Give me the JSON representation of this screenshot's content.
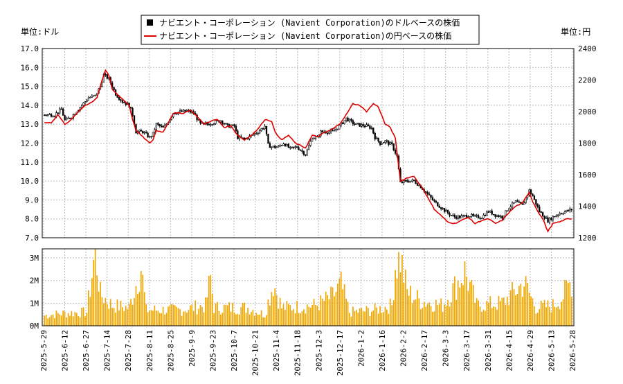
{
  "chart_data": {
    "type": "candlestick-volume",
    "legend": {
      "placement": "top-center",
      "entries": [
        {
          "label": "ナビエント・コーポレーション (Navient Corporation)のドルベースの株価",
          "color": "#000000",
          "marker": "square"
        },
        {
          "label": "ナビエント・コーポレーション (Navient Corporation)の円ベースの株価",
          "color": "#dd0000",
          "marker": "line"
        }
      ]
    },
    "left_unit_label": "単位:ドル",
    "right_unit_label": "単位:円",
    "price_axis_left": {
      "ylim": [
        7.0,
        17.0
      ],
      "ticks": [
        "7.0",
        "8.0",
        "9.0",
        "10.0",
        "11.0",
        "12.0",
        "13.0",
        "14.0",
        "15.0",
        "16.0",
        "17.0"
      ]
    },
    "price_axis_right": {
      "ylim": [
        1200,
        2400
      ],
      "ticks": [
        "1200",
        "1400",
        "1600",
        "1800",
        "2000",
        "2200",
        "2400"
      ]
    },
    "volume_axis": {
      "ylim": [
        0,
        3.4
      ],
      "ticks": [
        "0M",
        "1M",
        "2M",
        "3M"
      ]
    },
    "x_ticks": [
      "2025-5-29",
      "2025-6-12",
      "2025-6-27",
      "2025-7-14",
      "2025-7-28",
      "2025-8-11",
      "2025-8-25",
      "2025-9-9",
      "2025-9-23",
      "2025-10-7",
      "2025-10-21",
      "2025-11-4",
      "2025-11-18",
      "2025-12-3",
      "2025-12-17",
      "2026-1-2",
      "2026-1-16",
      "2026-2-2",
      "2026-2-17",
      "2026-3-3",
      "2026-3-17",
      "2026-3-31",
      "2026-4-15",
      "2026-4-29",
      "2026-5-13",
      "2026-5-28"
    ],
    "grid": true,
    "colors": {
      "usd": "#000000",
      "jpy": "#dd0000",
      "volume": "#f0a800",
      "grid": "#bbbbbb"
    },
    "keyframes_usd": [
      [
        0,
        13.5
      ],
      [
        6,
        13.5
      ],
      [
        10,
        13.8
      ],
      [
        12,
        13.2
      ],
      [
        16,
        13.4
      ],
      [
        22,
        14.0
      ],
      [
        26,
        14.4
      ],
      [
        30,
        14.5
      ],
      [
        33,
        15.0
      ],
      [
        35,
        15.6
      ],
      [
        38,
        15.4
      ],
      [
        40,
        15.0
      ],
      [
        42,
        14.6
      ],
      [
        46,
        14.2
      ],
      [
        50,
        14.0
      ],
      [
        52,
        13.5
      ],
      [
        54,
        12.6
      ],
      [
        58,
        12.6
      ],
      [
        62,
        12.3
      ],
      [
        64,
        12.5
      ],
      [
        66,
        13.0
      ],
      [
        70,
        12.8
      ],
      [
        72,
        13.0
      ],
      [
        76,
        13.6
      ],
      [
        84,
        13.7
      ],
      [
        88,
        13.6
      ],
      [
        92,
        13.0
      ],
      [
        96,
        13.0
      ],
      [
        100,
        13.1
      ],
      [
        104,
        13.2
      ],
      [
        108,
        12.9
      ],
      [
        112,
        12.9
      ],
      [
        114,
        12.3
      ],
      [
        118,
        12.2
      ],
      [
        122,
        12.4
      ],
      [
        126,
        12.6
      ],
      [
        130,
        12.9
      ],
      [
        132,
        11.9
      ],
      [
        134,
        11.8
      ],
      [
        138,
        11.8
      ],
      [
        141,
        12.0
      ],
      [
        145,
        11.7
      ],
      [
        149,
        11.8
      ],
      [
        154,
        11.4
      ],
      [
        158,
        12.3
      ],
      [
        161,
        12.3
      ],
      [
        163,
        12.6
      ],
      [
        170,
        12.6
      ],
      [
        174,
        12.9
      ],
      [
        178,
        13.3
      ],
      [
        183,
        13.0
      ],
      [
        190,
        12.9
      ],
      [
        193,
        12.8
      ],
      [
        195,
        12.3
      ],
      [
        198,
        12.0
      ],
      [
        201,
        12.1
      ],
      [
        205,
        11.9
      ],
      [
        208,
        11.3
      ],
      [
        210,
        9.9
      ],
      [
        214,
        10.0
      ],
      [
        218,
        10.0
      ],
      [
        222,
        9.7
      ],
      [
        226,
        9.3
      ],
      [
        230,
        8.9
      ],
      [
        234,
        8.6
      ],
      [
        238,
        8.3
      ],
      [
        242,
        8.1
      ],
      [
        246,
        8.1
      ],
      [
        250,
        8.2
      ],
      [
        254,
        8.1
      ],
      [
        258,
        8.1
      ],
      [
        262,
        8.4
      ],
      [
        266,
        8.2
      ],
      [
        270,
        8.1
      ],
      [
        274,
        8.6
      ],
      [
        278,
        8.9
      ],
      [
        282,
        8.7
      ],
      [
        286,
        9.5
      ],
      [
        288,
        9.2
      ],
      [
        292,
        8.4
      ],
      [
        294,
        8.2
      ],
      [
        297,
        7.9
      ],
      [
        300,
        8.1
      ],
      [
        304,
        8.3
      ],
      [
        308,
        8.4
      ],
      [
        311,
        8.5
      ]
    ],
    "keyframes_jpy": [
      [
        0,
        1930
      ],
      [
        4,
        1930
      ],
      [
        8,
        1980
      ],
      [
        12,
        1920
      ],
      [
        16,
        1950
      ],
      [
        20,
        2000
      ],
      [
        24,
        2040
      ],
      [
        28,
        2060
      ],
      [
        31,
        2090
      ],
      [
        34,
        2200
      ],
      [
        36,
        2260
      ],
      [
        38,
        2230
      ],
      [
        40,
        2140
      ],
      [
        42,
        2120
      ],
      [
        46,
        2080
      ],
      [
        50,
        2040
      ],
      [
        52,
        1950
      ],
      [
        54,
        1880
      ],
      [
        58,
        1840
      ],
      [
        62,
        1800
      ],
      [
        64,
        1820
      ],
      [
        66,
        1880
      ],
      [
        70,
        1870
      ],
      [
        72,
        1910
      ],
      [
        76,
        1990
      ],
      [
        82,
        1990
      ],
      [
        86,
        2010
      ],
      [
        90,
        1970
      ],
      [
        94,
        1920
      ],
      [
        98,
        1940
      ],
      [
        102,
        1950
      ],
      [
        106,
        1900
      ],
      [
        110,
        1910
      ],
      [
        114,
        1850
      ],
      [
        118,
        1820
      ],
      [
        122,
        1850
      ],
      [
        126,
        1890
      ],
      [
        130,
        1950
      ],
      [
        134,
        1940
      ],
      [
        136,
        1870
      ],
      [
        140,
        1820
      ],
      [
        144,
        1850
      ],
      [
        148,
        1800
      ],
      [
        154,
        1770
      ],
      [
        158,
        1850
      ],
      [
        161,
        1840
      ],
      [
        164,
        1860
      ],
      [
        170,
        1890
      ],
      [
        174,
        1920
      ],
      [
        178,
        1980
      ],
      [
        182,
        2050
      ],
      [
        186,
        2040
      ],
      [
        190,
        2000
      ],
      [
        194,
        2050
      ],
      [
        197,
        2030
      ],
      [
        201,
        1920
      ],
      [
        204,
        1900
      ],
      [
        207,
        1830
      ],
      [
        210,
        1560
      ],
      [
        214,
        1580
      ],
      [
        218,
        1590
      ],
      [
        222,
        1530
      ],
      [
        226,
        1460
      ],
      [
        230,
        1380
      ],
      [
        234,
        1340
      ],
      [
        238,
        1300
      ],
      [
        242,
        1290
      ],
      [
        246,
        1310
      ],
      [
        250,
        1330
      ],
      [
        254,
        1290
      ],
      [
        258,
        1310
      ],
      [
        262,
        1320
      ],
      [
        266,
        1290
      ],
      [
        270,
        1310
      ],
      [
        274,
        1360
      ],
      [
        278,
        1400
      ],
      [
        282,
        1420
      ],
      [
        286,
        1490
      ],
      [
        288,
        1430
      ],
      [
        292,
        1350
      ],
      [
        294,
        1320
      ],
      [
        297,
        1240
      ],
      [
        300,
        1290
      ],
      [
        304,
        1300
      ],
      [
        308,
        1320
      ],
      [
        311,
        1320
      ]
    ],
    "volume_keyframes": [
      [
        0,
        0.45
      ],
      [
        10,
        0.55
      ],
      [
        25,
        0.6
      ],
      [
        30,
        3.35
      ],
      [
        33,
        1.4
      ],
      [
        40,
        0.9
      ],
      [
        50,
        0.8
      ],
      [
        57,
        2.6
      ],
      [
        60,
        0.7
      ],
      [
        80,
        0.7
      ],
      [
        95,
        0.9
      ],
      [
        98,
        2.1
      ],
      [
        100,
        0.8
      ],
      [
        120,
        0.8
      ],
      [
        130,
        0.5
      ],
      [
        135,
        1.9
      ],
      [
        140,
        0.8
      ],
      [
        160,
        0.9
      ],
      [
        170,
        1.3
      ],
      [
        175,
        1.8
      ],
      [
        180,
        0.6
      ],
      [
        195,
        0.7
      ],
      [
        205,
        0.9
      ],
      [
        207,
        2.7
      ],
      [
        210,
        3.0
      ],
      [
        214,
        1.5
      ],
      [
        222,
        1.1
      ],
      [
        235,
        0.9
      ],
      [
        248,
        2.4
      ],
      [
        255,
        0.9
      ],
      [
        270,
        1.0
      ],
      [
        283,
        1.9
      ],
      [
        290,
        0.8
      ],
      [
        300,
        0.9
      ],
      [
        305,
        1.2
      ],
      [
        311,
        2.0
      ]
    ],
    "num_days": 312
  }
}
